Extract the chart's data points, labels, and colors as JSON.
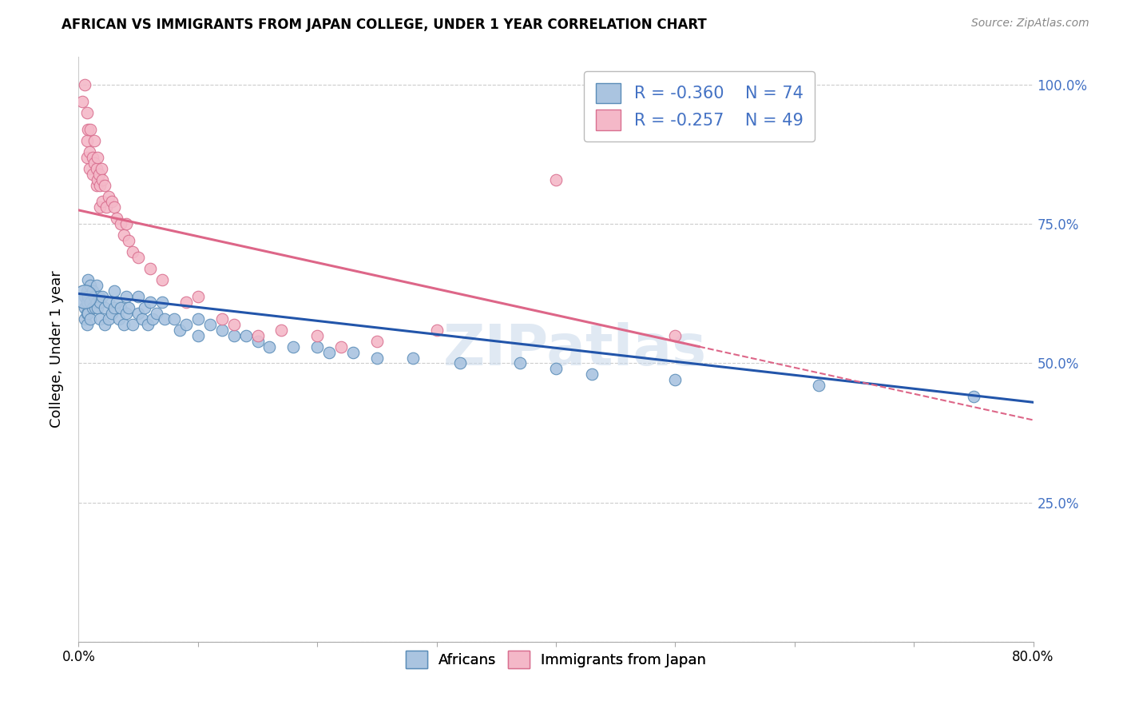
{
  "title": "AFRICAN VS IMMIGRANTS FROM JAPAN COLLEGE, UNDER 1 YEAR CORRELATION CHART",
  "source": "Source: ZipAtlas.com",
  "ylabel": "College, Under 1 year",
  "x_min": 0.0,
  "x_max": 0.8,
  "y_min": 0.0,
  "y_max": 1.05,
  "x_ticks": [
    0.0,
    0.1,
    0.2,
    0.3,
    0.4,
    0.5,
    0.6,
    0.7,
    0.8
  ],
  "y_ticks": [
    0.0,
    0.25,
    0.5,
    0.75,
    1.0
  ],
  "y_tick_labels_right": [
    "",
    "25.0%",
    "50.0%",
    "75.0%",
    "100.0%"
  ],
  "africans_color": "#aac4e0",
  "africans_edge_color": "#5b8db8",
  "japan_color": "#f4b8c8",
  "japan_edge_color": "#d97090",
  "africans_R": -0.36,
  "africans_N": 74,
  "japan_R": -0.257,
  "japan_N": 49,
  "line_blue": "#2255aa",
  "line_pink": "#dd6688",
  "legend_text_color": "#4472c4",
  "watermark": "ZIPatlas",
  "background_color": "#ffffff",
  "grid_color": "#cccccc",
  "africans_line_start_y": 0.625,
  "africans_line_end_y": 0.43,
  "japan_line_start_y": 0.775,
  "japan_line_end_y": 0.53,
  "japan_line_end_x": 0.52,
  "africans_x": [
    0.005,
    0.005,
    0.005,
    0.007,
    0.007,
    0.007,
    0.007,
    0.008,
    0.008,
    0.008,
    0.01,
    0.01,
    0.01,
    0.012,
    0.012,
    0.013,
    0.014,
    0.015,
    0.015,
    0.016,
    0.017,
    0.018,
    0.018,
    0.02,
    0.022,
    0.022,
    0.025,
    0.025,
    0.028,
    0.03,
    0.03,
    0.032,
    0.034,
    0.035,
    0.038,
    0.04,
    0.04,
    0.042,
    0.045,
    0.05,
    0.05,
    0.053,
    0.055,
    0.058,
    0.06,
    0.062,
    0.065,
    0.07,
    0.072,
    0.08,
    0.085,
    0.09,
    0.1,
    0.1,
    0.11,
    0.12,
    0.13,
    0.14,
    0.15,
    0.16,
    0.18,
    0.2,
    0.21,
    0.23,
    0.25,
    0.28,
    0.32,
    0.37,
    0.4,
    0.43,
    0.5,
    0.62,
    0.75
  ],
  "africans_y": [
    0.62,
    0.6,
    0.58,
    0.63,
    0.61,
    0.59,
    0.57,
    0.65,
    0.62,
    0.59,
    0.64,
    0.61,
    0.58,
    0.63,
    0.6,
    0.62,
    0.6,
    0.64,
    0.61,
    0.6,
    0.62,
    0.61,
    0.58,
    0.62,
    0.6,
    0.57,
    0.61,
    0.58,
    0.59,
    0.63,
    0.6,
    0.61,
    0.58,
    0.6,
    0.57,
    0.62,
    0.59,
    0.6,
    0.57,
    0.62,
    0.59,
    0.58,
    0.6,
    0.57,
    0.61,
    0.58,
    0.59,
    0.61,
    0.58,
    0.58,
    0.56,
    0.57,
    0.58,
    0.55,
    0.57,
    0.56,
    0.55,
    0.55,
    0.54,
    0.53,
    0.53,
    0.53,
    0.52,
    0.52,
    0.51,
    0.51,
    0.5,
    0.5,
    0.49,
    0.48,
    0.47,
    0.46,
    0.44
  ],
  "africans_large_x": [
    0.005
  ],
  "africans_large_y": [
    0.62
  ],
  "japan_x": [
    0.003,
    0.005,
    0.007,
    0.007,
    0.007,
    0.008,
    0.009,
    0.009,
    0.01,
    0.012,
    0.012,
    0.013,
    0.013,
    0.015,
    0.015,
    0.016,
    0.016,
    0.017,
    0.018,
    0.018,
    0.019,
    0.02,
    0.02,
    0.022,
    0.023,
    0.025,
    0.028,
    0.03,
    0.032,
    0.035,
    0.038,
    0.04,
    0.042,
    0.045,
    0.05,
    0.06,
    0.07,
    0.09,
    0.1,
    0.12,
    0.13,
    0.15,
    0.17,
    0.2,
    0.22,
    0.25,
    0.3,
    0.4,
    0.5
  ],
  "japan_y": [
    0.97,
    1.0,
    0.95,
    0.9,
    0.87,
    0.92,
    0.88,
    0.85,
    0.92,
    0.87,
    0.84,
    0.9,
    0.86,
    0.85,
    0.82,
    0.87,
    0.83,
    0.84,
    0.82,
    0.78,
    0.85,
    0.83,
    0.79,
    0.82,
    0.78,
    0.8,
    0.79,
    0.78,
    0.76,
    0.75,
    0.73,
    0.75,
    0.72,
    0.7,
    0.69,
    0.67,
    0.65,
    0.61,
    0.62,
    0.58,
    0.57,
    0.55,
    0.56,
    0.55,
    0.53,
    0.54,
    0.56,
    0.83,
    0.55
  ]
}
